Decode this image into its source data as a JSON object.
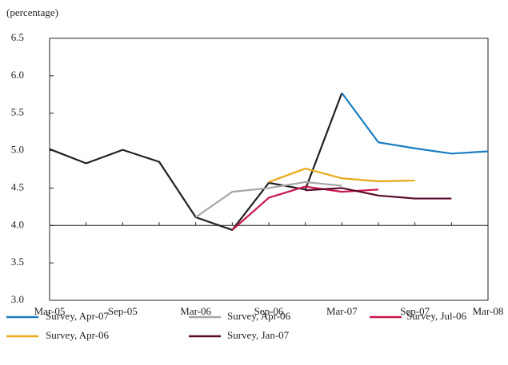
{
  "chart_data": {
    "type": "line",
    "y_label": "(percentage)",
    "categories": [
      "Mar-05",
      null,
      "Sep-05",
      null,
      "Mar-06",
      null,
      "Sep-06",
      null,
      "Mar-07",
      null,
      "Sep-07",
      null,
      "Mar-08"
    ],
    "series": [
      {
        "color": "#231f20",
        "values": [
          5.02,
          4.83,
          5.01,
          4.85,
          4.11,
          3.94,
          4.57,
          4.48,
          5.77,
          null,
          null,
          null,
          null
        ]
      },
      {
        "name": "Survey, Apr-07",
        "color": "#1a7dc0",
        "values": [
          null,
          null,
          null,
          null,
          null,
          null,
          null,
          null,
          5.77,
          5.11,
          5.03,
          4.96,
          4.99
        ]
      },
      {
        "name": "Survey, Apr-06",
        "color": "#a6a6a6",
        "values": [
          null,
          null,
          null,
          null,
          4.11,
          4.45,
          4.5,
          4.58,
          4.53,
          null,
          null,
          null,
          null
        ]
      },
      {
        "name": "Survey, Jul-06",
        "color": "#c8174a",
        "values": [
          null,
          null,
          null,
          null,
          null,
          3.94,
          4.37,
          4.52,
          4.45,
          4.48,
          null,
          null,
          null
        ]
      },
      {
        "name": "Survey, Apr-06",
        "color": "#e8a91a",
        "values": [
          null,
          null,
          null,
          null,
          null,
          null,
          4.58,
          4.76,
          4.63,
          4.59,
          4.6,
          null,
          null
        ]
      },
      {
        "name": "Survey, Jan-07",
        "color": "#5a0a2e",
        "values": [
          null,
          null,
          null,
          null,
          null,
          null,
          null,
          4.47,
          4.5,
          4.4,
          4.36,
          4.36,
          null
        ]
      }
    ],
    "ylim": [
      3,
      6.5
    ],
    "yticks": [
      {
        "value": 3,
        "label": "3.0"
      },
      3.5,
      {
        "value": 4,
        "label": "4.0"
      },
      4.5,
      {
        "value": 5,
        "label": "5.0"
      },
      5.5,
      {
        "value": 6,
        "label": "6.0"
      },
      6.5
    ],
    "reference_line": 4
  }
}
